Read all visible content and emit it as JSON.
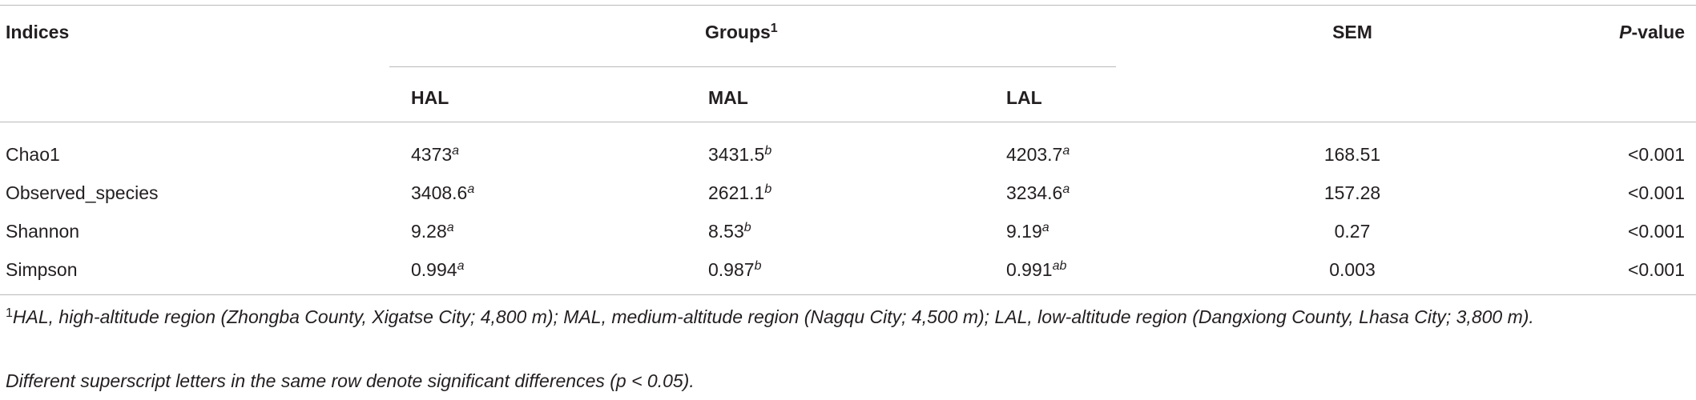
{
  "table": {
    "header": {
      "indices": "Indices",
      "groups": {
        "text": "Groups",
        "sup": "1"
      },
      "sem": "SEM",
      "p_value": {
        "italic": "P",
        "rest": "-value"
      }
    },
    "subheader": [
      "HAL",
      "MAL",
      "LAL"
    ],
    "rows": [
      {
        "label": "Chao1",
        "cells": [
          {
            "value": "4373",
            "sup": "a"
          },
          {
            "value": "3431.5",
            "sup": "b"
          },
          {
            "value": "4203.7",
            "sup": "a"
          }
        ],
        "sem": "168.51",
        "p": "<0.001"
      },
      {
        "label": "Observed_species",
        "cells": [
          {
            "value": "3408.6",
            "sup": "a"
          },
          {
            "value": "2621.1",
            "sup": "b"
          },
          {
            "value": "3234.6",
            "sup": "a"
          }
        ],
        "sem": "157.28",
        "p": "<0.001"
      },
      {
        "label": "Shannon",
        "cells": [
          {
            "value": "9.28",
            "sup": "a"
          },
          {
            "value": "8.53",
            "sup": "b"
          },
          {
            "value": "9.19",
            "sup": "a"
          }
        ],
        "sem": "0.27",
        "p": "<0.001"
      },
      {
        "label": "Simpson",
        "cells": [
          {
            "value": "0.994",
            "sup": "a"
          },
          {
            "value": "0.987",
            "sup": "b"
          },
          {
            "value": "0.991",
            "sup": "ab"
          }
        ],
        "sem": "0.003",
        "p": "<0.001"
      }
    ],
    "footnotes": [
      {
        "sup": "1",
        "text": "HAL, high-altitude region (Zhongba County, Xigatse City; 4,800 m); MAL, medium-altitude region (Nagqu City; 4,500 m); LAL, low-altitude region (Dangxiong County, Lhasa City; 3,800 m)."
      },
      {
        "text": "Different superscript letters in the same row denote significant differences (p < 0.05)."
      }
    ]
  }
}
